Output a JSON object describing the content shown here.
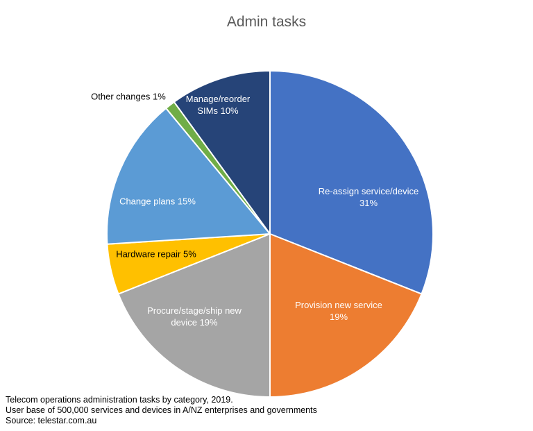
{
  "chart_data": {
    "type": "pie",
    "title": "Admin tasks",
    "slices": [
      {
        "label_lines": [
          "Re-assign service/device",
          "31%"
        ],
        "value": 31,
        "color": "#4472C4",
        "label_color": "#ffffff"
      },
      {
        "label_lines": [
          "Provision new service",
          "19%"
        ],
        "value": 19,
        "color": "#ED7D31",
        "label_color": "#ffffff"
      },
      {
        "label_lines": [
          "Procure/stage/ship new",
          "device 19%"
        ],
        "value": 19,
        "color": "#A5A5A5",
        "label_color": "#ffffff"
      },
      {
        "label_lines": [
          "Hardware repair 5%"
        ],
        "value": 5,
        "color": "#FFC000",
        "label_color": "#000000"
      },
      {
        "label_lines": [
          "Change plans 15%"
        ],
        "value": 15,
        "color": "#5B9BD5",
        "label_color": "#ffffff"
      },
      {
        "label_lines": [
          "Other changes 1%"
        ],
        "value": 1,
        "color": "#70AD47",
        "label_color": "#000000"
      },
      {
        "label_lines": [
          "Manage/reorder",
          "SIMs 10%"
        ],
        "value": 10,
        "color": "#264478",
        "label_color": "#ffffff"
      }
    ],
    "legend": "none"
  },
  "caption": {
    "line1": "Telecom operations administration tasks by category, 2019.",
    "line2": "User base of 500,000 services and devices in A/NZ enterprises and governments",
    "line3": "Source: telestar.com.au"
  }
}
